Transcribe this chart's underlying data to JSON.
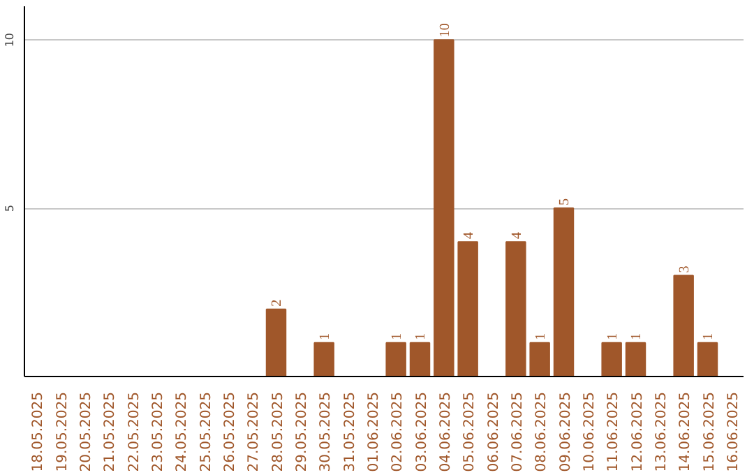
{
  "chart_data": {
    "type": "bar",
    "categories": [
      "18.05.2025",
      "19.05.2025",
      "20.05.2025",
      "21.05.2025",
      "22.05.2025",
      "23.05.2025",
      "24.05.2025",
      "25.05.2025",
      "26.05.2025",
      "27.05.2025",
      "28.05.2025",
      "29.05.2025",
      "30.05.2025",
      "31.05.2025",
      "01.06.2025",
      "02.06.2025",
      "03.06.2025",
      "04.06.2025",
      "05.06.2025",
      "06.06.2025",
      "07.06.2025",
      "08.06.2025",
      "09.06.2025",
      "10.06.2025",
      "11.06.2025",
      "12.06.2025",
      "13.06.2025",
      "14.06.2025",
      "15.06.2025",
      "16.06.2025"
    ],
    "values": [
      0,
      0,
      0,
      0,
      0,
      0,
      0,
      0,
      0,
      0,
      2,
      0,
      1,
      0,
      0,
      1,
      1,
      10,
      4,
      0,
      4,
      1,
      5,
      0,
      1,
      1,
      0,
      3,
      1,
      0
    ],
    "value_labels": [
      null,
      null,
      null,
      null,
      null,
      null,
      null,
      null,
      null,
      null,
      "2",
      null,
      "1",
      null,
      null,
      "1",
      "1",
      "10",
      "4",
      null,
      "4",
      "1",
      "5",
      null,
      "1",
      "1",
      null,
      "3",
      "1",
      null
    ],
    "color": "#a0572a",
    "ylim": [
      0,
      11
    ],
    "yticks": [
      5,
      10
    ],
    "grid": "y"
  }
}
